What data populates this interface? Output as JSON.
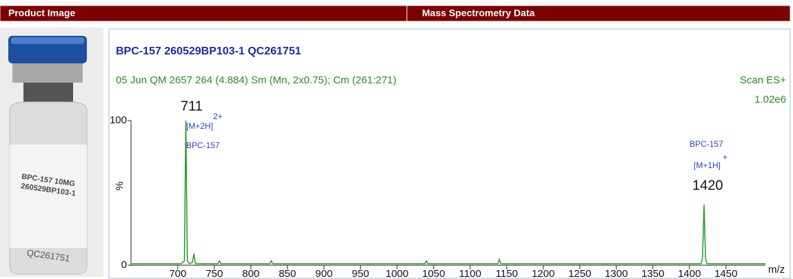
{
  "header": {
    "left": "Product Image",
    "right": "Mass Spectrometry Data"
  },
  "product_image": {
    "label_lines": [
      "BPC-157  10MG",
      "260529BP103-1",
      "QC261751"
    ]
  },
  "chart_data": {
    "type": "line",
    "title": "BPC-157 260529BP103-1 QC261751",
    "subtitle": "05 Jun QM 2657  264 (4.884) Sm (Mn, 2x0.75); Cm (261:271)",
    "scan": "Scan ES+",
    "intensity": "1.02e6",
    "ylabel": "%",
    "xlabel": "m/z",
    "annotations": [
      "711",
      "[M+2H]",
      "2+",
      "BPC-157",
      "BPC-157",
      "[M+1H]",
      "+",
      "1420"
    ],
    "xlim": [
      636,
      1504
    ],
    "ylim": [
      0,
      100
    ],
    "xticks": [
      700,
      750,
      800,
      850,
      900,
      950,
      1000,
      1050,
      1100,
      1150,
      1200,
      1250,
      1300,
      1350,
      1400,
      1450
    ],
    "yticks": [
      0,
      100
    ],
    "series": [
      {
        "name": "Scan ES+",
        "color": "#1f9a1f",
        "x": [
          636,
          690,
          705,
          709,
          711,
          713,
          716,
          720,
          722,
          724,
          740,
          755,
          757,
          759,
          790,
          826,
          828,
          830,
          900,
          950,
          1038,
          1040,
          1042,
          1100,
          1138,
          1140,
          1142,
          1200,
          1300,
          1380,
          1416,
          1418,
          1420,
          1422,
          1424,
          1440,
          1504
        ],
        "values": [
          1,
          1,
          1,
          3,
          100,
          3,
          1,
          2,
          8,
          1,
          1,
          1,
          3,
          1,
          1,
          1,
          3,
          1,
          1,
          1,
          1,
          3,
          1,
          1,
          1,
          4,
          1,
          1,
          1,
          1,
          1,
          5,
          42,
          5,
          1,
          1,
          1
        ]
      }
    ]
  }
}
